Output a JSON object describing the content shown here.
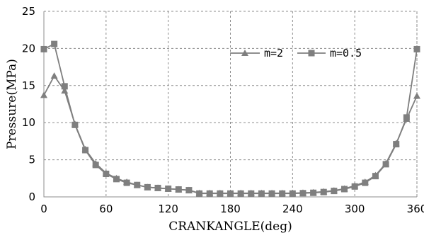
{
  "chart_data": {
    "type": "line",
    "title": "",
    "xlabel": "CRANKANGLE(deg)",
    "ylabel": "Pressure(MPa)",
    "xlim": [
      0,
      360
    ],
    "ylim": [
      0,
      25
    ],
    "xticks": [
      0,
      60,
      120,
      180,
      240,
      300,
      360
    ],
    "yticks": [
      0,
      5,
      10,
      15,
      20,
      25
    ],
    "grid": true,
    "legend_position": "top-right",
    "line_color": "#7f7f7f",
    "x": [
      0,
      10,
      20,
      30,
      40,
      50,
      60,
      70,
      80,
      90,
      100,
      110,
      120,
      130,
      140,
      150,
      160,
      170,
      180,
      190,
      200,
      210,
      220,
      230,
      240,
      250,
      260,
      270,
      280,
      290,
      300,
      310,
      320,
      330,
      340,
      350,
      360
    ],
    "series": [
      {
        "name": "m=2",
        "marker": "triangle",
        "values": [
          13.7,
          16.3,
          14.3,
          9.8,
          6.4,
          4.5,
          3.2,
          2.5,
          2.0,
          1.6,
          1.3,
          1.2,
          1.1,
          1.0,
          0.9,
          0.5,
          0.5,
          0.5,
          0.5,
          0.5,
          0.5,
          0.5,
          0.5,
          0.5,
          0.5,
          0.55,
          0.6,
          0.7,
          0.85,
          1.1,
          1.5,
          2.0,
          2.9,
          4.5,
          7.2,
          10.5,
          13.6
        ]
      },
      {
        "name": "m=0.5",
        "marker": "square",
        "values": [
          19.9,
          20.6,
          14.9,
          9.7,
          6.3,
          4.3,
          3.1,
          2.4,
          1.9,
          1.6,
          1.3,
          1.2,
          1.1,
          1.0,
          0.9,
          0.45,
          0.45,
          0.45,
          0.45,
          0.45,
          0.45,
          0.45,
          0.45,
          0.45,
          0.45,
          0.5,
          0.55,
          0.65,
          0.8,
          1.05,
          1.4,
          1.9,
          2.8,
          4.4,
          7.1,
          10.7,
          19.9
        ]
      }
    ]
  }
}
